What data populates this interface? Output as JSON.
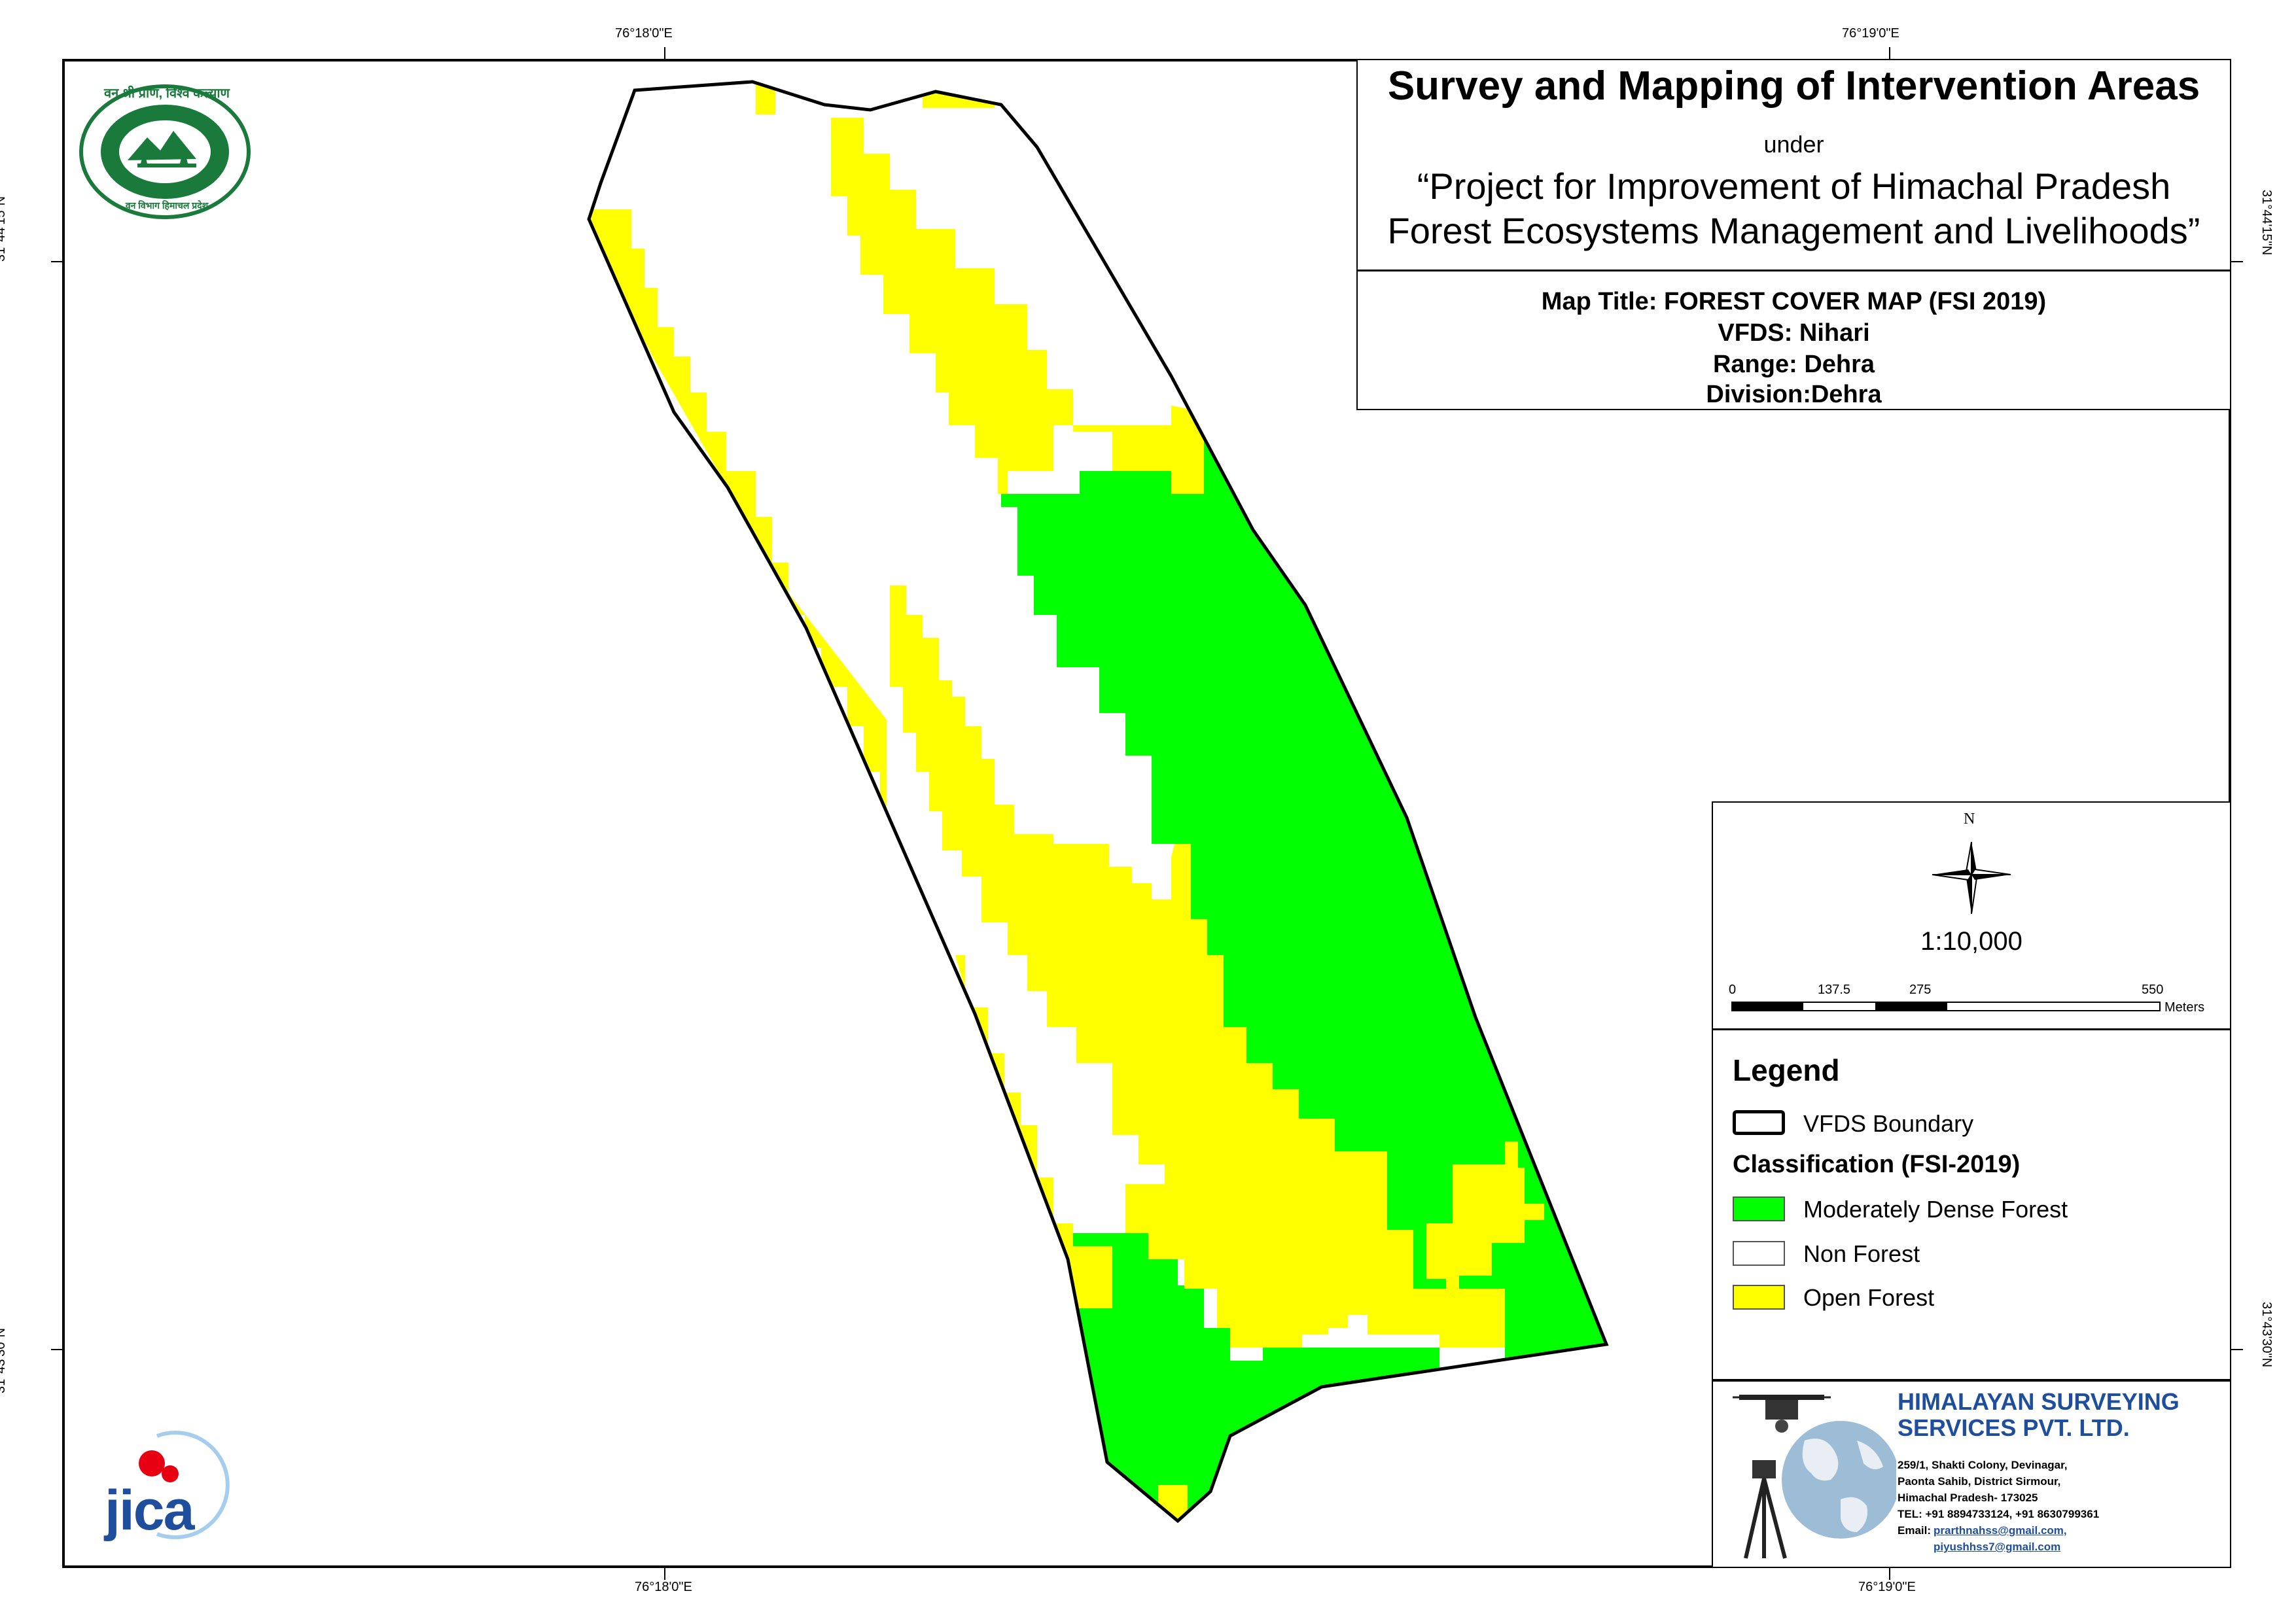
{
  "coordinates": {
    "top_left_lon": "76°18'0\"E",
    "top_right_lon": "76°19'0\"E",
    "bottom_left_lon": "76°18'0\"E",
    "bottom_right_lon": "76°19'0\"E",
    "left_upper_lat": "31°44'15\"N",
    "left_lower_lat": "31°43'30\"N",
    "right_upper_lat": "31°44'15\"N",
    "right_lower_lat": "31°43'30\"N"
  },
  "title_block": {
    "heading": "Survey and Mapping of Intervention Areas",
    "under": "under",
    "project_line1": "“Project for Improvement of Himachal Pradesh",
    "project_line2": "Forest Ecosystems Management and Livelihoods”",
    "map_title": "Map Title: FOREST COVER MAP (FSI 2019)",
    "vfds": "VFDS: Nihari",
    "range": "Range: Dehra",
    "division": "Division:Dehra"
  },
  "north_arrow": {
    "label": "N"
  },
  "scale": {
    "ratio": "1:10,000",
    "ticks": [
      "0",
      "137.5",
      "275",
      "550"
    ],
    "unit": "Meters"
  },
  "legend": {
    "title": "Legend",
    "boundary_label": "VFDS Boundary",
    "classification_title": "Classification (FSI-2019)",
    "items": [
      {
        "label": "Moderately Dense Forest",
        "color": "#00ff00"
      },
      {
        "label": "Non Forest",
        "color": "#ffffff"
      },
      {
        "label": "Open Forest",
        "color": "#ffff00"
      }
    ]
  },
  "company": {
    "name_line1": "HIMALAYAN SURVEYING",
    "name_line2": "SERVICES PVT. LTD.",
    "address_line1": "259/1, Shakti Colony, Devinagar,",
    "address_line2": "Paonta Sahib, District Sirmour,",
    "address_line3": "Himachal Pradesh- 173025",
    "phone": "TEL: +91 8894733124, +91 8630799361",
    "email_label": "Email:",
    "email1": "prarthnahss@gmail.com,",
    "email2": "piyushhss7@gmail.com"
  },
  "logos": {
    "forest_dept_text_top": "वन श्री प्राण, विश्व कल्याण",
    "forest_dept_text_bottom": "वन विभाग हिमाचल प्रदेश",
    "jica": "JICA"
  },
  "colors": {
    "moderately_dense_forest": "#00ff00",
    "open_forest": "#ffff00",
    "non_forest": "#ffffff",
    "company_blue": "#1f4e9c",
    "forest_logo_green": "#1a7a3c"
  }
}
